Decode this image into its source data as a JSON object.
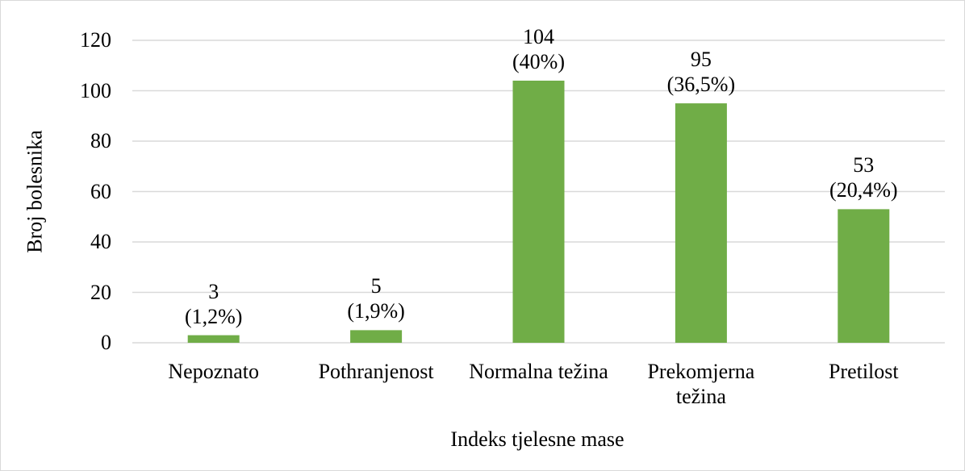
{
  "chart_data": {
    "type": "bar",
    "x_label": "Indeks tjelesne mase",
    "y_label": "Broj bolesnika",
    "categories": [
      "Nepoznato",
      "Pothranjenost",
      "Normalna težina",
      "Prekomjerna težina",
      "Pretilost"
    ],
    "values": [
      3,
      5,
      104,
      95,
      53
    ],
    "value_labels": [
      "3\n(1,2%)",
      "5\n(1,9%)",
      "104\n(40%)",
      "95\n(36,5%)",
      "53\n(20,4%)"
    ],
    "color": "#70ad47",
    "ylim": [
      0,
      120
    ],
    "yticks": [
      0,
      20,
      40,
      60,
      80,
      100,
      120
    ],
    "grid": true
  }
}
